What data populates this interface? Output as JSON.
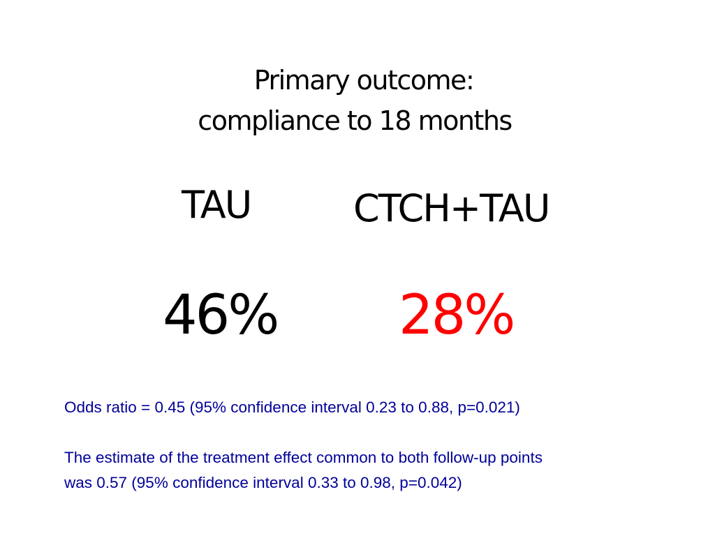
{
  "colors": {
    "text": "#000000",
    "highlight": "#ff0000",
    "stats_text": "#000099"
  },
  "title": {
    "line1": "Primary outcome:",
    "line2": "compliance to 18 months"
  },
  "groups": [
    {
      "label": "TAU",
      "value": "46%"
    },
    {
      "label": "CTCH+TAU",
      "value": "28%"
    }
  ],
  "stats": {
    "odds_ratio": "Odds ratio = 0.45 (95% confidence interval 0.23 to 0.88, p=0.021)",
    "common_effect_line1": "The estimate of the treatment effect common to both follow-up points",
    "common_effect_line2": "was 0.57 (95% confidence interval 0.33 to 0.98, p=0.042)"
  }
}
